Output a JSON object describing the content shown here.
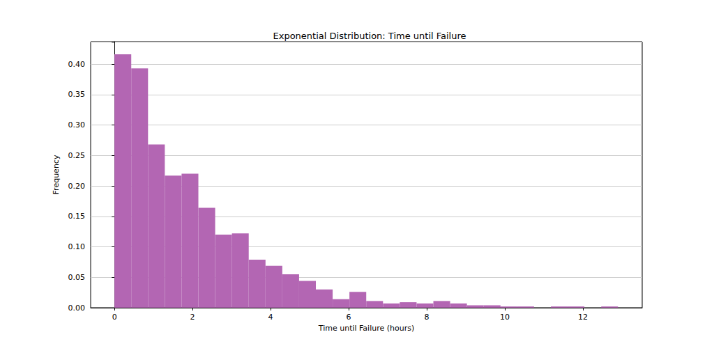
{
  "chart_data": {
    "type": "histogram",
    "title": "Exponential Distribution: Time until Failure",
    "x_label": "Time until Failure (hours)",
    "y_label": "Frequency",
    "bins": [
      0,
      0.43,
      0.86,
      1.29,
      1.72,
      2.15,
      2.58,
      3.01,
      3.44,
      3.87,
      4.3,
      4.73,
      5.16,
      5.59,
      6.02,
      6.45,
      6.88,
      7.31,
      7.74,
      8.17,
      8.6,
      9.03,
      9.46,
      9.89,
      10.32,
      10.75,
      11.18,
      11.61,
      12.04,
      12.47,
      12.9
    ],
    "values": [
      0.416,
      0.393,
      0.268,
      0.217,
      0.22,
      0.164,
      0.12,
      0.122,
      0.079,
      0.069,
      0.055,
      0.044,
      0.03,
      0.014,
      0.026,
      0.011,
      0.007,
      0.009,
      0.007,
      0.011,
      0.007,
      0.004,
      0.004,
      0.002,
      0.002,
      0,
      0.002,
      0.002,
      0,
      0.002
    ],
    "color": "#b366b3",
    "xlim": [
      -0.61,
      13.52
    ],
    "xticks": [
      0,
      2,
      4,
      6,
      8,
      10,
      12
    ],
    "ylim": [
      0,
      0.4366
    ],
    "yticks": [
      {
        "value": 0,
        "label": "0.00"
      },
      {
        "value": 0.05,
        "label": "0.05"
      },
      {
        "value": 0.1,
        "label": "0.10"
      },
      {
        "value": 0.15,
        "label": "0.15"
      },
      {
        "value": 0.2,
        "label": "0.20"
      },
      {
        "value": 0.25,
        "label": "0.25"
      },
      {
        "value": 0.3,
        "label": "0.30"
      },
      {
        "value": 0.35,
        "label": "0.35"
      },
      {
        "value": 0.4,
        "label": "0.40"
      }
    ],
    "grid": "y"
  }
}
